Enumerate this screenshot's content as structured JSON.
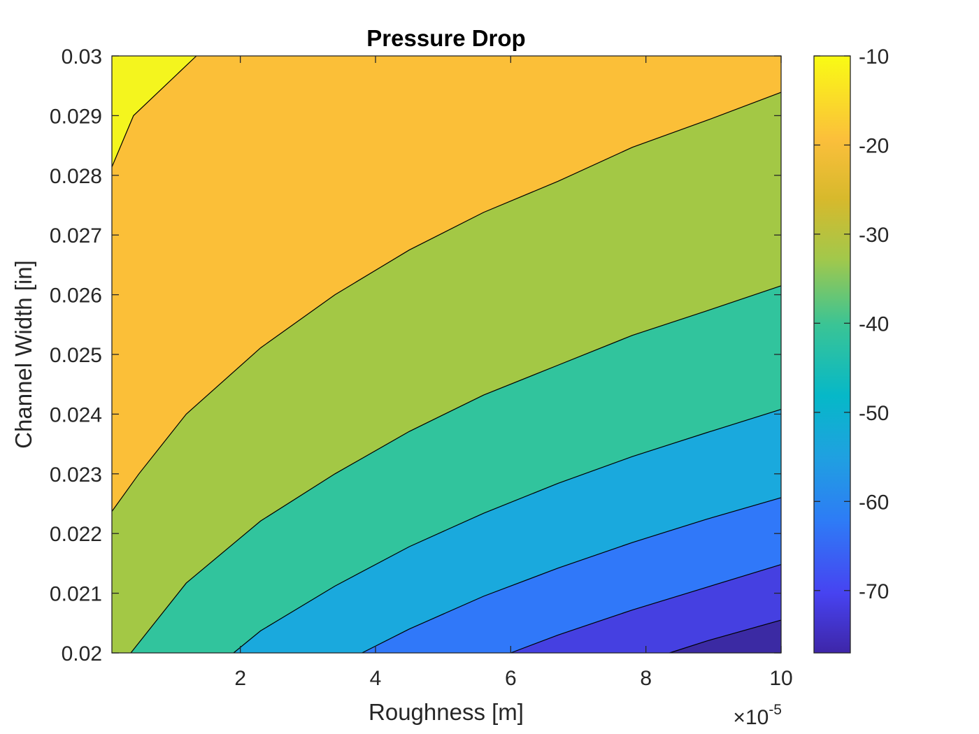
{
  "chart_data": {
    "type": "contour",
    "title": "Pressure Drop",
    "xlabel": "Roughness [m]",
    "ylabel": "Channel Width [in]",
    "x_exponent_label": "×10",
    "x_exponent_power": "-5",
    "xlim": [
      1e-06,
      0.0001
    ],
    "ylim": [
      0.02,
      0.03
    ],
    "x_ticks": [
      {
        "value": 2e-05,
        "label": "2"
      },
      {
        "value": 4e-05,
        "label": "4"
      },
      {
        "value": 6e-05,
        "label": "6"
      },
      {
        "value": 8e-05,
        "label": "8"
      },
      {
        "value": 0.0001,
        "label": "10"
      }
    ],
    "y_ticks": [
      {
        "value": 0.02,
        "label": "0.02"
      },
      {
        "value": 0.021,
        "label": "0.021"
      },
      {
        "value": 0.022,
        "label": "0.022"
      },
      {
        "value": 0.023,
        "label": "0.023"
      },
      {
        "value": 0.024,
        "label": "0.024"
      },
      {
        "value": 0.025,
        "label": "0.025"
      },
      {
        "value": 0.026,
        "label": "0.026"
      },
      {
        "value": 0.027,
        "label": "0.027"
      },
      {
        "value": 0.028,
        "label": "0.028"
      },
      {
        "value": 0.029,
        "label": "0.029"
      },
      {
        "value": 0.03,
        "label": "0.03"
      }
    ],
    "colorbar": {
      "range": [
        -77,
        -10
      ],
      "colormap": "parula",
      "ticks": [
        {
          "value": -10,
          "label": "-10"
        },
        {
          "value": -20,
          "label": "-20"
        },
        {
          "value": -30,
          "label": "-30"
        },
        {
          "value": -40,
          "label": "-40"
        },
        {
          "value": -50,
          "label": "-50"
        },
        {
          "value": -60,
          "label": "-60"
        },
        {
          "value": -70,
          "label": "-70"
        }
      ]
    },
    "levels": [
      -10,
      -20,
      -30,
      -40,
      -50,
      -60,
      -70
    ],
    "bands": [
      {
        "range": "above -10",
        "color": "#f4f51e"
      },
      {
        "range": "-20 to -10",
        "color": "#fbbf38"
      },
      {
        "range": "-30 to -20",
        "color": "#a3c845"
      },
      {
        "range": "-40 to -30",
        "color": "#31c49d"
      },
      {
        "range": "-50 to -40",
        "color": "#1aa9dd"
      },
      {
        "range": "-60 to -50",
        "color": "#3078f9"
      },
      {
        "range": "-70 to -60",
        "color": "#4540e1"
      },
      {
        "range": "below -70",
        "color": "#3b2aa3"
      }
    ],
    "contour_lines": [
      {
        "level": -10,
        "points": [
          [
            1e-06,
            0.02814
          ],
          [
            4.2e-06,
            0.029
          ],
          [
            1.35e-05,
            0.03
          ]
        ]
      },
      {
        "level": -20,
        "points": [
          [
            1e-06,
            0.02237
          ],
          [
            5e-06,
            0.023
          ],
          [
            1.2e-05,
            0.024
          ],
          [
            2.3e-05,
            0.02511
          ],
          [
            3.4e-05,
            0.026
          ],
          [
            4.5e-05,
            0.02675
          ],
          [
            5.6e-05,
            0.02738
          ],
          [
            6.7e-05,
            0.0279
          ],
          [
            7.8e-05,
            0.02847
          ],
          [
            8.9e-05,
            0.02892
          ],
          [
            0.0001,
            0.02939
          ]
        ]
      },
      {
        "level": -30,
        "points": [
          [
            3.8e-06,
            0.02
          ],
          [
            1.2e-05,
            0.02117
          ],
          [
            2.3e-05,
            0.02221
          ],
          [
            3.4e-05,
            0.023
          ],
          [
            4.5e-05,
            0.02371
          ],
          [
            5.6e-05,
            0.02432
          ],
          [
            6.7e-05,
            0.02482
          ],
          [
            7.8e-05,
            0.02532
          ],
          [
            8.9e-05,
            0.02573
          ],
          [
            0.0001,
            0.02615
          ]
        ]
      },
      {
        "level": -40,
        "points": [
          [
            1.9e-05,
            0.02
          ],
          [
            2.3e-05,
            0.02037
          ],
          [
            3.4e-05,
            0.02112
          ],
          [
            4.5e-05,
            0.02178
          ],
          [
            5.6e-05,
            0.02234
          ],
          [
            6.7e-05,
            0.02284
          ],
          [
            7.8e-05,
            0.02329
          ],
          [
            8.9e-05,
            0.02369
          ],
          [
            0.0001,
            0.02408
          ]
        ]
      },
      {
        "level": -50,
        "points": [
          [
            3.8e-05,
            0.02
          ],
          [
            4.5e-05,
            0.0204
          ],
          [
            5.6e-05,
            0.02095
          ],
          [
            6.7e-05,
            0.02142
          ],
          [
            7.8e-05,
            0.02185
          ],
          [
            8.9e-05,
            0.02224
          ],
          [
            0.0001,
            0.0226
          ]
        ]
      },
      {
        "level": -60,
        "points": [
          [
            6e-05,
            0.02
          ],
          [
            6.7e-05,
            0.0203
          ],
          [
            7.8e-05,
            0.02072
          ],
          [
            8.9e-05,
            0.0211
          ],
          [
            0.0001,
            0.02148
          ]
        ]
      },
      {
        "level": -70,
        "points": [
          [
            8.35e-05,
            0.02
          ],
          [
            8.9e-05,
            0.0202
          ],
          [
            0.0001,
            0.02055
          ]
        ]
      }
    ]
  }
}
